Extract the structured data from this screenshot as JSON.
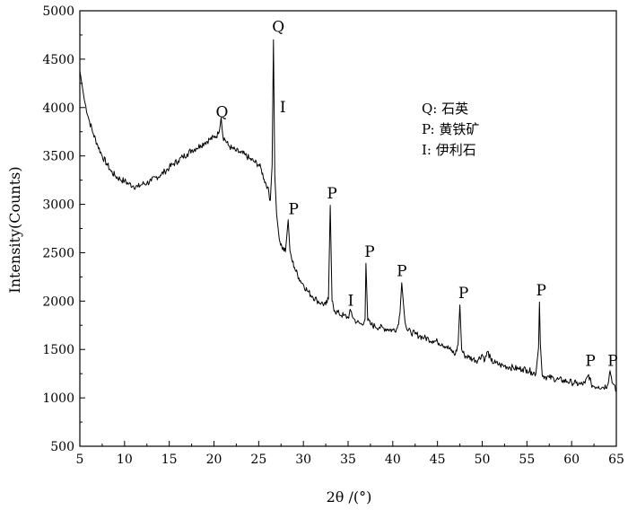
{
  "chart_data": {
    "type": "line",
    "title": "",
    "xlabel": "2θ /(°)",
    "ylabel": "Intensity(Counts)",
    "xlim": [
      5,
      65
    ],
    "ylim": [
      500,
      5000
    ],
    "x_ticks": [
      5,
      10,
      15,
      20,
      25,
      30,
      35,
      40,
      45,
      50,
      55,
      60,
      65
    ],
    "y_ticks": [
      500,
      1000,
      1500,
      2000,
      2500,
      3000,
      3500,
      4000,
      4500,
      5000
    ],
    "grid": false,
    "legend_position": "top-right",
    "legend": [
      {
        "text": "Q: 石英"
      },
      {
        "text": "P: 黄铁矿"
      },
      {
        "text": "I: 伊利石"
      }
    ],
    "series": [
      {
        "color": "#000000",
        "x": [
          5.0,
          5.5,
          6.0,
          6.5,
          7.0,
          7.5,
          8.0,
          8.5,
          9.0,
          9.5,
          10.0,
          10.5,
          11.0,
          11.5,
          12.0,
          12.5,
          13.0,
          13.5,
          14.0,
          14.5,
          15.0,
          15.5,
          16.0,
          16.5,
          17.0,
          17.5,
          18.0,
          18.5,
          19.0,
          19.5,
          20.0,
          20.5,
          20.8,
          21.0,
          21.3,
          21.6,
          22.0,
          22.5,
          23.0,
          23.5,
          24.0,
          24.5,
          25.0,
          25.3,
          25.6,
          26.0,
          26.3,
          26.5,
          26.65,
          26.8,
          27.0,
          27.3,
          27.6,
          28.0,
          28.3,
          28.5,
          28.7,
          29.0,
          29.5,
          30.0,
          30.5,
          31.0,
          31.5,
          32.0,
          32.5,
          32.8,
          33.0,
          33.2,
          33.5,
          34.0,
          34.5,
          35.0,
          35.3,
          35.6,
          36.0,
          36.5,
          36.9,
          37.0,
          37.2,
          37.5,
          38.0,
          38.5,
          39.0,
          39.5,
          40.0,
          40.5,
          40.8,
          41.0,
          41.3,
          41.6,
          42.0,
          42.5,
          43.0,
          43.5,
          44.0,
          44.5,
          45.0,
          45.5,
          46.0,
          46.5,
          47.0,
          47.3,
          47.5,
          47.7,
          48.0,
          48.5,
          49.0,
          49.5,
          50.0,
          50.3,
          50.6,
          51.0,
          51.5,
          52.0,
          52.5,
          53.0,
          53.5,
          54.0,
          54.5,
          55.0,
          55.5,
          56.0,
          56.3,
          56.4,
          56.5,
          56.7,
          57.0,
          57.5,
          58.0,
          58.5,
          59.0,
          59.5,
          60.0,
          60.5,
          61.0,
          61.5,
          61.9,
          62.2,
          62.5,
          63.0,
          63.5,
          64.0,
          64.3,
          64.6,
          65.0
        ],
        "y": [
          4380,
          4080,
          3880,
          3730,
          3610,
          3500,
          3420,
          3340,
          3290,
          3260,
          3240,
          3210,
          3190,
          3180,
          3210,
          3220,
          3240,
          3280,
          3300,
          3340,
          3380,
          3420,
          3450,
          3490,
          3520,
          3560,
          3580,
          3610,
          3640,
          3670,
          3690,
          3730,
          3900,
          3700,
          3660,
          3610,
          3580,
          3550,
          3530,
          3510,
          3470,
          3440,
          3410,
          3360,
          3260,
          3180,
          3040,
          3400,
          4700,
          3300,
          2900,
          2640,
          2560,
          2510,
          2840,
          2520,
          2430,
          2350,
          2240,
          2170,
          2100,
          2050,
          2010,
          1980,
          1960,
          2020,
          2990,
          2000,
          1900,
          1870,
          1850,
          1830,
          1900,
          1820,
          1780,
          1760,
          1810,
          2390,
          1800,
          1760,
          1740,
          1730,
          1720,
          1710,
          1700,
          1720,
          1870,
          2190,
          1850,
          1700,
          1680,
          1660,
          1640,
          1620,
          1610,
          1590,
          1580,
          1560,
          1530,
          1490,
          1450,
          1550,
          1960,
          1500,
          1440,
          1420,
          1400,
          1390,
          1450,
          1390,
          1480,
          1380,
          1360,
          1340,
          1330,
          1320,
          1310,
          1300,
          1300,
          1290,
          1270,
          1250,
          1520,
          1990,
          1560,
          1240,
          1220,
          1210,
          1200,
          1190,
          1180,
          1170,
          1160,
          1150,
          1140,
          1150,
          1240,
          1140,
          1120,
          1120,
          1110,
          1130,
          1280,
          1150,
          1060
        ]
      }
    ],
    "annotations": [
      {
        "text": "Q",
        "x": 20.9,
        "y": 3900
      },
      {
        "text": "Q",
        "x": 27.2,
        "y": 4780
      },
      {
        "text": "I",
        "x": 27.7,
        "y": 3950
      },
      {
        "text": "P",
        "x": 28.9,
        "y": 2900
      },
      {
        "text": "P",
        "x": 33.2,
        "y": 3060
      },
      {
        "text": "I",
        "x": 35.3,
        "y": 1950
      },
      {
        "text": "P",
        "x": 37.4,
        "y": 2460
      },
      {
        "text": "P",
        "x": 41.0,
        "y": 2260
      },
      {
        "text": "P",
        "x": 47.9,
        "y": 2030
      },
      {
        "text": "P",
        "x": 56.6,
        "y": 2060
      },
      {
        "text": "P",
        "x": 62.1,
        "y": 1330
      },
      {
        "text": "P",
        "x": 64.6,
        "y": 1330
      }
    ]
  }
}
